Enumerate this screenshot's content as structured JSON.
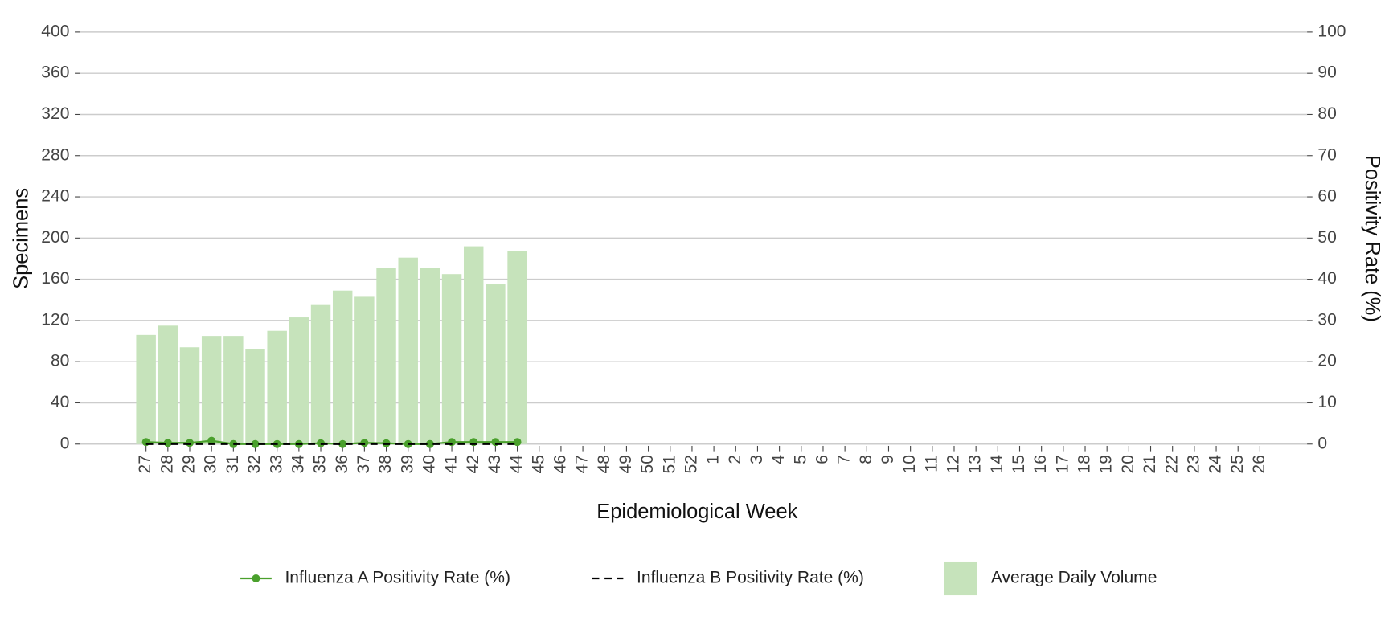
{
  "chart_data": {
    "type": "bar",
    "xlabel": "Epidemiological Week",
    "ylabel": "Specimens",
    "y2label": "Positivity Rate (%)",
    "categories": [
      "27",
      "28",
      "29",
      "30",
      "31",
      "32",
      "33",
      "34",
      "35",
      "36",
      "37",
      "38",
      "39",
      "40",
      "41",
      "42",
      "43",
      "44",
      "45",
      "46",
      "47",
      "48",
      "49",
      "50",
      "51",
      "52",
      "1",
      "2",
      "3",
      "4",
      "5",
      "6",
      "7",
      "8",
      "9",
      "10",
      "11",
      "12",
      "13",
      "14",
      "15",
      "16",
      "17",
      "18",
      "19",
      "20",
      "21",
      "22",
      "23",
      "24",
      "25",
      "26"
    ],
    "series": [
      {
        "name": "Influenza A Positivity Rate (%)",
        "type": "line",
        "axis": "y2",
        "color": "#4aa02c",
        "values": [
          0.5,
          0.3,
          0.3,
          0.8,
          0,
          0,
          0,
          0,
          0.2,
          0,
          0.3,
          0.2,
          0,
          0,
          0.5,
          0.5,
          0.5,
          0.5,
          null,
          null,
          null,
          null,
          null,
          null,
          null,
          null,
          null,
          null,
          null,
          null,
          null,
          null,
          null,
          null,
          null,
          null,
          null,
          null,
          null,
          null,
          null,
          null,
          null,
          null,
          null,
          null,
          null,
          null,
          null,
          null,
          null,
          null
        ]
      },
      {
        "name": "Influenza B Positivity Rate (%)",
        "type": "line",
        "dashed": true,
        "axis": "y2",
        "color": "#000000",
        "values": [
          0,
          0,
          0,
          0,
          0,
          0,
          0,
          0,
          0,
          0,
          0,
          0,
          0,
          0,
          0,
          0,
          0,
          0,
          null,
          null,
          null,
          null,
          null,
          null,
          null,
          null,
          null,
          null,
          null,
          null,
          null,
          null,
          null,
          null,
          null,
          null,
          null,
          null,
          null,
          null,
          null,
          null,
          null,
          null,
          null,
          null,
          null,
          null,
          null,
          null,
          null,
          null
        ]
      },
      {
        "name": "Average Daily Volume",
        "type": "bar",
        "color": "#c6e3bb",
        "values": [
          106,
          115,
          94,
          105,
          105,
          92,
          110,
          123,
          135,
          149,
          143,
          171,
          181,
          171,
          165,
          192,
          155,
          187,
          null,
          null,
          null,
          null,
          null,
          null,
          null,
          null,
          null,
          null,
          null,
          null,
          null,
          null,
          null,
          null,
          null,
          null,
          null,
          null,
          null,
          null,
          null,
          null,
          null,
          null,
          null,
          null,
          null,
          null,
          null,
          null,
          null,
          null
        ]
      }
    ],
    "ylim": [
      0,
      400
    ],
    "yticks": [
      0,
      40,
      80,
      120,
      160,
      200,
      240,
      280,
      320,
      360,
      400
    ],
    "y2lim": [
      0,
      100
    ],
    "y2ticks": [
      0,
      10,
      20,
      30,
      40,
      50,
      60,
      70,
      80,
      90,
      100
    ],
    "grid": true,
    "legend": "bottom"
  }
}
